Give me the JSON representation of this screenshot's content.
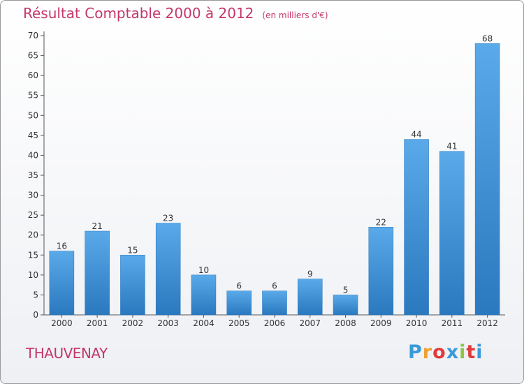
{
  "chart_data": {
    "type": "bar",
    "title": "Résultat Comptable 2000 à 2012",
    "subtitle": "(en milliers d'€)",
    "categories": [
      "2000",
      "2001",
      "2002",
      "2003",
      "2004",
      "2005",
      "2006",
      "2007",
      "2008",
      "2009",
      "2010",
      "2011",
      "2012"
    ],
    "values": [
      16,
      21,
      15,
      23,
      10,
      6,
      6,
      9,
      5,
      22,
      44,
      41,
      68
    ],
    "yticks": [
      "0",
      "5",
      "10",
      "15",
      "20",
      "25",
      "30",
      "35",
      "40",
      "45",
      "50",
      "55",
      "60",
      "65",
      "70"
    ],
    "ylim": [
      0,
      70
    ],
    "xlabel": "",
    "ylabel": "",
    "grid": false,
    "bar_color": "#3d8fd6"
  },
  "location": {
    "name": "THAUVENAY"
  },
  "brand": {
    "letters": [
      "P",
      "r",
      "o",
      "x",
      "i",
      "t",
      "i"
    ],
    "colors": [
      "#3a9ad9",
      "#f0a030",
      "#e03a3a",
      "#3a9ad9",
      "#8cc63f",
      "#e03a3a",
      "#3a9ad9"
    ]
  }
}
